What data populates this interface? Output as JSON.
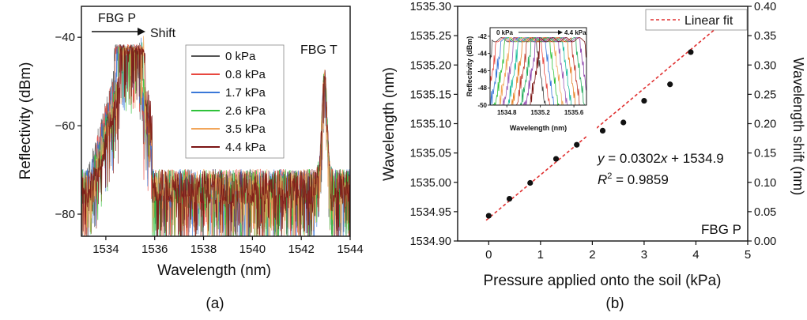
{
  "chart_data": [
    {
      "type": "line",
      "panel_label": "(a)",
      "xlabel": "Wavelength (nm)",
      "ylabel": "Reflectivity (dBm)",
      "xlim": [
        1533,
        1544
      ],
      "ylim": [
        -85,
        -33
      ],
      "xticks": [
        1534,
        1536,
        1538,
        1540,
        1542,
        1544
      ],
      "yticks": [
        -80,
        -60,
        -40
      ],
      "legend_position": "upper-middle",
      "annotations": {
        "fbg_p": "FBG P",
        "shift": "Shift",
        "fbg_t": "FBG T"
      },
      "series": [
        {
          "name": "0 kPa",
          "color": "#555555",
          "peak_x": 1534.84,
          "peak_y": -42.5
        },
        {
          "name": "0.8 kPa",
          "color": "#e8483f",
          "peak_x": 1534.88,
          "peak_y": -42.5
        },
        {
          "name": "1.7 kPa",
          "color": "#3a78d8",
          "peak_x": 1534.93,
          "peak_y": -42.8
        },
        {
          "name": "2.6 kPa",
          "color": "#2fc23a",
          "peak_x": 1534.98,
          "peak_y": -43.0
        },
        {
          "name": "3.5 kPa",
          "color": "#f2a65a",
          "peak_x": 1535.03,
          "peak_y": -42.8
        },
        {
          "name": "4.4 kPa",
          "color": "#7b1414",
          "peak_x": 1535.08,
          "peak_y": -42.5
        }
      ],
      "fbg_t_peak": {
        "x": 1542.95,
        "y": -48
      },
      "noise_floor": -73
    },
    {
      "type": "scatter",
      "panel_label": "(b)",
      "xlabel": "Pressure applied onto the soil (kPa)",
      "ylabel": "Wavelength (nm)",
      "y2label": "Wavelength shift (nm)",
      "xlim": [
        -0.6,
        5
      ],
      "ylim": [
        1534.9,
        1535.3
      ],
      "y2lim": [
        0,
        0.4
      ],
      "xticks": [
        0,
        1,
        2,
        3,
        4,
        5
      ],
      "yticks": [
        "1534.90",
        "1534.95",
        "1535.00",
        "1535.05",
        "1535.10",
        "1535.15",
        "1535.20",
        "1535.25",
        "1535.30"
      ],
      "y2ticks": [
        "0.00",
        "0.05",
        "0.10",
        "0.15",
        "0.20",
        "0.25",
        "0.30",
        "0.35",
        "0.40"
      ],
      "x": [
        0,
        0.4,
        0.8,
        1.3,
        1.7,
        2.2,
        2.6,
        3.0,
        3.5,
        3.9
      ],
      "y": [
        1534.943,
        1534.972,
        1534.999,
        1535.04,
        1535.064,
        1535.088,
        1535.102,
        1535.139,
        1535.167,
        1535.222
      ],
      "fit": {
        "slope": 0.0302,
        "intercept": 1534.9,
        "color": "#e03030",
        "name": "Linear fit"
      },
      "equation": {
        "prefix": "y",
        "body": " = 0.0302",
        "var": "x",
        "tail": " + 1534.9"
      },
      "r2": {
        "R": "R",
        "sup": "2",
        "tail": " = 0.9859"
      },
      "annotation": "FBG P",
      "legend_position": "top-right",
      "inset": {
        "xlabel": "Wavelength (nm)",
        "ylabel": "Reflectivity (dBm)",
        "xlim": [
          1534.6,
          1535.75
        ],
        "ylim": [
          -50,
          -41
        ],
        "xticks": [
          "1534.8",
          "1535.2",
          "1535.6"
        ],
        "yticks": [
          "-42",
          "-44",
          "-46",
          "-48",
          "-50"
        ],
        "label_start": "0 kPa",
        "label_end": "4.4 kPa",
        "curve_count": 12
      }
    }
  ]
}
